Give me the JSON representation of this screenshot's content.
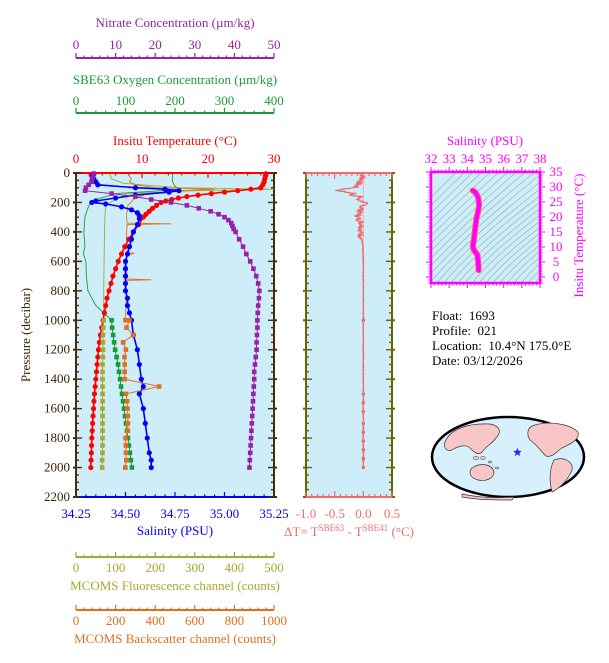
{
  "info": {
    "float_label": "Float:",
    "float_value": "1693",
    "profile_label": "Profile:",
    "profile_value": "021",
    "location_label": "Location:",
    "location_value": "10.4°N  175.0°E",
    "date_label": "Date:",
    "date_value": "03/12/2026"
  },
  "colors": {
    "temperature": "#ff0000",
    "salinity": "#0000ff",
    "oxygen": "#1a9a3a",
    "nitrate": "#9b1fa8",
    "fluorescence": "#a8a830",
    "backscatter": "#e07020",
    "delta": "#f26b6b",
    "ts": "#ff00ff",
    "plot_bg": "#cdeef8",
    "frame": "#4a2c0a",
    "delta_frame": "#6b6200"
  },
  "chart_data": [
    {
      "id": "profile",
      "type": "line",
      "title": "Multi-parameter float profile",
      "ylabel": "Pressure (decibar)",
      "ylim": [
        0,
        2200
      ],
      "yticks": [
        0,
        200,
        400,
        600,
        800,
        1000,
        1200,
        1400,
        1600,
        1800,
        2000,
        2200
      ],
      "axes": [
        {
          "name": "Nitrate Concentration (µm/kg)",
          "position": "top-1",
          "range": [
            0,
            50
          ],
          "ticks": [
            "0",
            "10",
            "20",
            "30",
            "40",
            "50"
          ]
        },
        {
          "name": "SBE63 Oxygen Concentration (µm/kg)",
          "position": "top-2",
          "range": [
            0,
            400
          ],
          "ticks": [
            "0",
            "100",
            "200",
            "300",
            "400"
          ]
        },
        {
          "name": "Insitu Temperature (°C)",
          "position": "top-3",
          "range": [
            0,
            30
          ],
          "ticks": [
            "0",
            "10",
            "20",
            "30"
          ]
        },
        {
          "name": "Salinity (PSU)",
          "position": "bottom-1",
          "range": [
            34.25,
            35.25
          ],
          "ticks": [
            "34.25",
            "34.50",
            "34.75",
            "35.00",
            "35.25"
          ]
        },
        {
          "name": "MCOMS Fluorescence channel (counts)",
          "position": "bottom-2",
          "range": [
            0,
            500
          ],
          "ticks": [
            "0",
            "100",
            "200",
            "300",
            "400",
            "500"
          ]
        },
        {
          "name": "MCOMS Backscatter channel (counts)",
          "position": "bottom-3",
          "range": [
            0,
            1000
          ],
          "ticks": [
            "0",
            "200",
            "400",
            "600",
            "800",
            "1000"
          ]
        }
      ],
      "series": [
        {
          "name": "Temperature",
          "axis": "Insitu Temperature (°C)",
          "pressure": [
            5,
            20,
            40,
            60,
            80,
            100,
            110,
            120,
            130,
            140,
            150,
            160,
            170,
            180,
            190,
            200,
            220,
            240,
            260,
            280,
            300,
            350,
            400,
            450,
            500,
            550,
            600,
            650,
            700,
            750,
            800,
            850,
            900,
            950,
            1000,
            1050,
            1100,
            1150,
            1200,
            1250,
            1300,
            1350,
            1400,
            1450,
            1500,
            1550,
            1600,
            1650,
            1700,
            1750,
            1800,
            1850,
            1900,
            1950,
            2000
          ],
          "values": [
            28.8,
            28.7,
            28.6,
            28.5,
            28.3,
            28.0,
            26.5,
            24.5,
            22.5,
            20.5,
            18.5,
            16.8,
            15.5,
            14.5,
            13.6,
            12.9,
            12.2,
            11.6,
            11.1,
            10.6,
            10.2,
            9.5,
            8.7,
            8.0,
            7.4,
            6.9,
            6.4,
            6.0,
            5.6,
            5.3,
            5.0,
            4.7,
            4.5,
            4.3,
            4.1,
            3.9,
            3.7,
            3.55,
            3.4,
            3.3,
            3.2,
            3.1,
            3.0,
            2.9,
            2.8,
            2.72,
            2.65,
            2.58,
            2.52,
            2.46,
            2.4,
            2.36,
            2.32,
            2.28,
            2.25
          ]
        },
        {
          "name": "Salinity",
          "axis": "Salinity (PSU)",
          "pressure": [
            5,
            20,
            40,
            60,
            80,
            100,
            110,
            120,
            130,
            150,
            170,
            190,
            200,
            210,
            230,
            250,
            270,
            290,
            310,
            350,
            400,
            450,
            500,
            550,
            600,
            650,
            700,
            750,
            800,
            850,
            900,
            950,
            1000,
            1100,
            1200,
            1300,
            1400,
            1450,
            1500,
            1600,
            1700,
            1800,
            1900,
            1950,
            2000
          ],
          "values": [
            34.34,
            34.33,
            34.34,
            34.35,
            34.36,
            34.55,
            34.7,
            34.77,
            34.72,
            34.55,
            34.45,
            34.35,
            34.33,
            34.4,
            34.48,
            34.53,
            34.56,
            34.57,
            34.57,
            34.56,
            34.54,
            34.53,
            34.52,
            34.51,
            34.5,
            34.5,
            34.5,
            34.5,
            34.5,
            34.51,
            34.51,
            34.52,
            34.53,
            34.54,
            34.56,
            34.57,
            34.58,
            34.59,
            34.57,
            34.59,
            34.6,
            34.61,
            34.62,
            34.63,
            34.63
          ]
        },
        {
          "name": "Oxygen",
          "axis": "SBE63 Oxygen Concentration (µm/kg)",
          "pressure": [
            1000,
            1050,
            1100,
            1150,
            1200,
            1250,
            1300,
            1350,
            1400,
            1450,
            1500,
            1550,
            1600,
            1650,
            1700,
            1750,
            1800,
            1850,
            1900,
            1950,
            2000
          ],
          "values": [
            72,
            73,
            75,
            77,
            79,
            82,
            85,
            87,
            89,
            91,
            93,
            95,
            97,
            99,
            101,
            103,
            105,
            107,
            109,
            111,
            113
          ]
        },
        {
          "name": "Nitrate",
          "axis": "Nitrate Concentration (µm/kg)",
          "pressure": [
            5,
            20,
            40,
            60,
            80,
            100,
            120,
            140,
            160,
            180,
            200,
            220,
            240,
            260,
            280,
            300,
            320,
            340,
            360,
            380,
            400,
            450,
            500,
            550,
            600,
            650,
            700,
            750,
            800,
            850,
            900,
            950,
            1000,
            1050,
            1100,
            1150,
            1200,
            1250,
            1300,
            1350,
            1400,
            1450,
            1500,
            1550,
            1600,
            1650,
            1700,
            1750,
            1800,
            1850,
            1900,
            1950,
            2000
          ],
          "values": [
            4.5,
            4.3,
            4.1,
            3.9,
            3.2,
            2.5,
            2.3,
            9,
            15,
            19,
            24,
            28,
            31,
            34,
            36,
            37.5,
            38.5,
            39.2,
            39.5,
            39.8,
            40.3,
            41.2,
            42.2,
            43,
            44,
            44.8,
            45.5,
            46,
            46.3,
            46.2,
            46,
            45.9,
            45.8,
            45.8,
            45.7,
            45.6,
            45.6,
            45.4,
            45.2,
            45,
            45,
            44.9,
            44.8,
            44.7,
            44.6,
            44.5,
            44.4,
            44.3,
            44.2,
            44.1,
            44,
            43.9,
            43.8
          ]
        },
        {
          "name": "Fluorescence",
          "axis": "MCOMS Fluorescence channel (counts)",
          "pressure": [
            1000,
            1050,
            1100,
            1150,
            1200,
            1250,
            1300,
            1350,
            1400,
            1450,
            1500,
            1550,
            1600,
            1650,
            1700,
            1750,
            1800,
            1850,
            1900,
            1950,
            2000
          ],
          "values": [
            70,
            69,
            68,
            68,
            68,
            68,
            67,
            67,
            67,
            67,
            67,
            67,
            67,
            67,
            67,
            67,
            67,
            67,
            67,
            66,
            66
          ]
        },
        {
          "name": "Backscatter",
          "axis": "MCOMS Backscatter channel (counts)",
          "pressure": [
            1000,
            1000,
            1050,
            1100,
            1150,
            1200,
            1250,
            1300,
            1350,
            1400,
            1450,
            1500,
            1550,
            1600,
            1650,
            1700,
            1750,
            1800,
            1850,
            1900,
            1950,
            2000
          ],
          "values": [
            250,
            270,
            255,
            290,
            238,
            252,
            245,
            246,
            246,
            246,
            420,
            252,
            258,
            260,
            262,
            262,
            262,
            250,
            252,
            252,
            254,
            249
          ]
        }
      ]
    },
    {
      "id": "delta",
      "type": "line",
      "xlabel": "ΔT= T^SBE63 - T^SBE41 (°C)",
      "xlim": [
        -1.0,
        0.5
      ],
      "xticks": [
        "-1.0",
        "-0.5",
        "0.0",
        "0.5"
      ],
      "ylim": [
        0,
        2200
      ],
      "series": [
        {
          "name": "Delta T",
          "pressure": [
            0,
            40,
            80,
            100,
            110,
            120,
            130,
            140,
            150,
            160,
            180,
            200,
            250,
            300,
            350,
            400,
            500,
            600,
            800,
            1000,
            1200,
            1400,
            1600,
            1800,
            1900,
            2000
          ],
          "values": [
            0.0,
            -0.02,
            -0.1,
            -0.15,
            -0.35,
            -0.45,
            -0.3,
            -0.15,
            -0.2,
            -0.05,
            -0.1,
            0.03,
            -0.05,
            -0.1,
            -0.02,
            -0.05,
            -0.01,
            0.0,
            0.0,
            0.0,
            0.0,
            0.0,
            0.0,
            0.0,
            0.0,
            0.0
          ]
        }
      ]
    },
    {
      "id": "ts",
      "type": "line",
      "title": "Salinity (PSU)",
      "xlabel": "Salinity (PSU)",
      "ylabel": "Insitu Temperature (°C)",
      "xlim": [
        32,
        38
      ],
      "ylim": [
        -2,
        35
      ],
      "xticks": [
        "32",
        "33",
        "34",
        "35",
        "36",
        "37",
        "38"
      ],
      "yticks": [
        "0",
        "5",
        "10",
        "15",
        "20",
        "25",
        "30",
        "35"
      ],
      "series": [
        {
          "name": "T-S",
          "salinity": [
            34.3,
            34.45,
            34.6,
            34.65,
            34.6,
            34.5,
            34.45,
            34.4,
            34.35,
            34.3,
            34.35,
            34.55,
            34.6,
            34.62
          ],
          "temperature": [
            28.8,
            28.2,
            26.5,
            24,
            22,
            19.5,
            17,
            14.5,
            12,
            10.5,
            9,
            7.5,
            5,
            2.3
          ]
        }
      ]
    }
  ],
  "map": {
    "marker": "star",
    "marker_lat": 10.4,
    "marker_lon": 175.0
  }
}
